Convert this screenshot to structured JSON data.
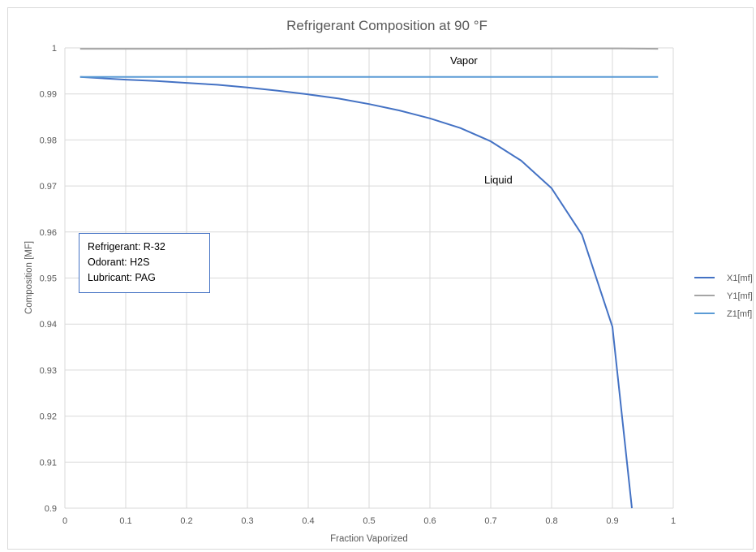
{
  "chart_data": {
    "type": "line",
    "title": "Refrigerant Composition at 90 °F",
    "xlabel": "Fraction Vaporized",
    "ylabel": "Composition [MF]",
    "xlim": [
      0,
      1
    ],
    "ylim": [
      0.9,
      1
    ],
    "x_ticks": [
      "0",
      "0.1",
      "0.2",
      "0.3",
      "0.4",
      "0.5",
      "0.6",
      "0.7",
      "0.8",
      "0.9",
      "1"
    ],
    "y_ticks": [
      "0.9",
      "0.91",
      "0.92",
      "0.93",
      "0.94",
      "0.95",
      "0.96",
      "0.97",
      "0.98",
      "0.99",
      "1"
    ],
    "grid": true,
    "legend_position": "right",
    "series": [
      {
        "name": "X1[mf]",
        "color": "#4472c4",
        "x": [
          0.025,
          0.05,
          0.1,
          0.15,
          0.2,
          0.25,
          0.3,
          0.35,
          0.4,
          0.45,
          0.5,
          0.55,
          0.6,
          0.65,
          0.7,
          0.75,
          0.8,
          0.85,
          0.9,
          0.932
        ],
        "y": [
          0.9937,
          0.9935,
          0.9931,
          0.9928,
          0.9924,
          0.992,
          0.9914,
          0.9907,
          0.9899,
          0.989,
          0.9878,
          0.9864,
          0.9847,
          0.9826,
          0.9797,
          0.9755,
          0.9695,
          0.9594,
          0.9394,
          0.9
        ]
      },
      {
        "name": "Y1[mf]",
        "color": "#a5a5a5",
        "x": [
          0.025,
          0.1,
          0.2,
          0.3,
          0.4,
          0.5,
          0.6,
          0.7,
          0.8,
          0.9,
          0.975
        ],
        "y": [
          0.9998,
          0.9998,
          0.9998,
          0.9998,
          0.9999,
          0.9999,
          0.9999,
          0.9999,
          0.9999,
          0.9999,
          0.9998
        ]
      },
      {
        "name": "Z1[mf]",
        "color": "#5b9bd5",
        "x": [
          0.025,
          0.975
        ],
        "y": [
          0.9937,
          0.9937
        ]
      }
    ],
    "annotations": {
      "vapor": "Vapor",
      "liquid": "Liquid"
    },
    "info_box": {
      "line1": "Refrigerant: R-32",
      "line2": "Odorant: H2S",
      "line3": "Lubricant: PAG"
    }
  }
}
